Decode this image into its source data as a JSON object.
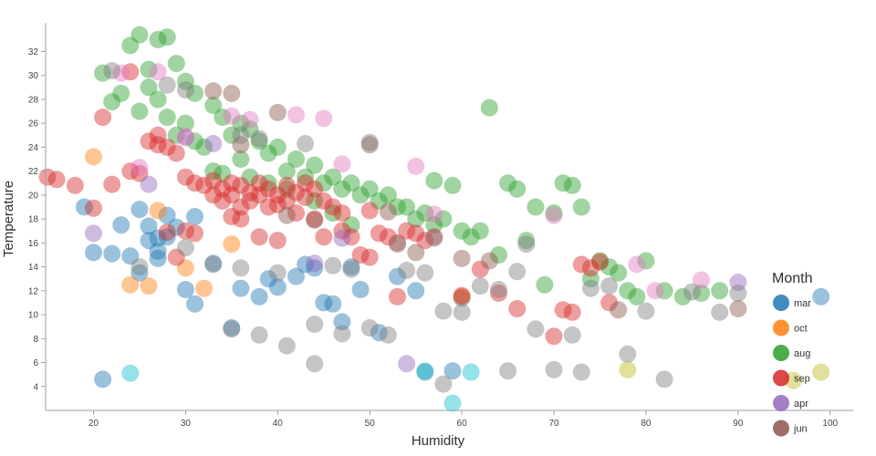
{
  "chart_data": {
    "type": "scatter",
    "title": "",
    "xlabel": "Humidity",
    "ylabel": "Temperature",
    "xlim": [
      14.8,
      102.5
    ],
    "ylim": [
      2,
      34.4
    ],
    "x_ticks": [
      20,
      30,
      40,
      50,
      60,
      70,
      80,
      90,
      100
    ],
    "y_ticks": [
      4,
      6,
      8,
      10,
      12,
      14,
      16,
      18,
      20,
      22,
      24,
      26,
      28,
      30,
      32
    ],
    "grid": false,
    "legend_title": "Month",
    "legend_position": "right",
    "point_opacity": 0.45,
    "point_radius": 9.5,
    "legend_items": [
      {
        "label": "mar",
        "color": "#1f77b4"
      },
      {
        "label": "oct",
        "color": "#ff7f0e"
      },
      {
        "label": "aug",
        "color": "#2ca02c"
      },
      {
        "label": "sep",
        "color": "#d62728"
      },
      {
        "label": "apr",
        "color": "#9467bd"
      },
      {
        "label": "jun",
        "color": "#8c564b"
      }
    ],
    "series": [
      {
        "name": "mar",
        "color": "#1f77b4",
        "points": [
          [
            19,
            19
          ],
          [
            20,
            15.2
          ],
          [
            21,
            4.6
          ],
          [
            22,
            15.1
          ],
          [
            23,
            17.5
          ],
          [
            24,
            14.9
          ],
          [
            25,
            18.8
          ],
          [
            25,
            13.5
          ],
          [
            26,
            17.4
          ],
          [
            26,
            16.2
          ],
          [
            27,
            16.4
          ],
          [
            27,
            15.3
          ],
          [
            27,
            14.7
          ],
          [
            28,
            18.3
          ],
          [
            28,
            16.5
          ],
          [
            29,
            17.3
          ],
          [
            30,
            12.1
          ],
          [
            31,
            18.2
          ],
          [
            31,
            10.9
          ],
          [
            33,
            14.3
          ],
          [
            35,
            8.9
          ],
          [
            36,
            12.2
          ],
          [
            38,
            11.5
          ],
          [
            39,
            13.0
          ],
          [
            40,
            12.3
          ],
          [
            42,
            13.2
          ],
          [
            43,
            14.2
          ],
          [
            44,
            13.9
          ],
          [
            45,
            11.0
          ],
          [
            46,
            10.9
          ],
          [
            47,
            9.4
          ],
          [
            48,
            14.0
          ],
          [
            49,
            12.1
          ],
          [
            51,
            8.5
          ],
          [
            53,
            13.2
          ],
          [
            55,
            12.0
          ],
          [
            56,
            5.2
          ],
          [
            59,
            5.3
          ],
          [
            60,
            11.4
          ],
          [
            99,
            11.5
          ]
        ]
      },
      {
        "name": "oct",
        "color": "#ff7f0e",
        "points": [
          [
            20,
            23.2
          ],
          [
            24,
            12.5
          ],
          [
            26,
            12.4
          ],
          [
            27,
            18.7
          ],
          [
            30,
            13.9
          ],
          [
            32,
            12.2
          ],
          [
            35,
            15.9
          ],
          [
            60,
            11.5
          ]
        ]
      },
      {
        "name": "aug",
        "color": "#2ca02c",
        "points": [
          [
            21,
            30.2
          ],
          [
            22,
            27.8
          ],
          [
            23,
            28.5
          ],
          [
            24,
            32.5
          ],
          [
            25,
            33.4
          ],
          [
            25,
            27
          ],
          [
            26,
            30.5
          ],
          [
            26,
            29
          ],
          [
            27,
            33
          ],
          [
            27,
            28
          ],
          [
            28,
            33.2
          ],
          [
            28,
            26.5
          ],
          [
            29,
            31
          ],
          [
            29,
            25
          ],
          [
            30,
            29.5
          ],
          [
            30,
            26
          ],
          [
            31,
            28.5
          ],
          [
            31,
            24.5
          ],
          [
            32,
            24
          ],
          [
            33,
            27.5
          ],
          [
            33,
            22
          ],
          [
            34,
            26.5
          ],
          [
            34,
            21.8
          ],
          [
            35,
            25
          ],
          [
            36,
            26
          ],
          [
            36,
            23
          ],
          [
            37,
            25.5
          ],
          [
            37,
            21.5
          ],
          [
            38,
            24.5
          ],
          [
            39,
            23.5
          ],
          [
            39,
            21
          ],
          [
            40,
            24
          ],
          [
            41,
            22
          ],
          [
            41,
            20.5
          ],
          [
            42,
            23
          ],
          [
            43,
            21.5
          ],
          [
            44,
            22.5
          ],
          [
            44,
            19.5
          ],
          [
            45,
            21
          ],
          [
            46,
            21.5
          ],
          [
            46,
            18.5
          ],
          [
            47,
            20.5
          ],
          [
            48,
            21
          ],
          [
            48,
            17.5
          ],
          [
            49,
            20
          ],
          [
            50,
            20.5
          ],
          [
            51,
            19.5
          ],
          [
            52,
            20
          ],
          [
            53,
            19
          ],
          [
            54,
            19
          ],
          [
            55,
            18
          ],
          [
            56,
            18.5
          ],
          [
            57,
            21.2
          ],
          [
            57,
            17.5
          ],
          [
            58,
            18
          ],
          [
            59,
            20.8
          ],
          [
            60,
            17
          ],
          [
            61,
            16.5
          ],
          [
            62,
            17
          ],
          [
            63,
            27.3
          ],
          [
            64,
            15
          ],
          [
            65,
            21
          ],
          [
            66,
            20.5
          ],
          [
            67,
            16.2
          ],
          [
            68,
            19
          ],
          [
            69,
            12.5
          ],
          [
            70,
            18.5
          ],
          [
            71,
            21
          ],
          [
            72,
            20.8
          ],
          [
            73,
            19
          ],
          [
            74,
            13
          ],
          [
            75,
            14.5
          ],
          [
            76,
            14
          ],
          [
            77,
            13.5
          ],
          [
            78,
            12
          ],
          [
            79,
            11.5
          ],
          [
            80,
            14.5
          ],
          [
            82,
            12
          ],
          [
            84,
            11.5
          ],
          [
            86,
            11.8
          ],
          [
            88,
            12
          ]
        ]
      },
      {
        "name": "sep",
        "color": "#d62728",
        "points": [
          [
            15,
            21.5
          ],
          [
            16,
            21.3
          ],
          [
            18,
            20.8
          ],
          [
            20,
            18.9
          ],
          [
            21,
            26.5
          ],
          [
            22,
            20.9
          ],
          [
            24,
            30.3
          ],
          [
            24,
            22
          ],
          [
            25,
            21.8
          ],
          [
            26,
            24.5
          ],
          [
            27,
            25
          ],
          [
            27,
            24.2
          ],
          [
            28,
            24
          ],
          [
            28,
            16.9
          ],
          [
            29,
            23.5
          ],
          [
            29,
            14.8
          ],
          [
            30,
            21.5
          ],
          [
            30,
            17
          ],
          [
            31,
            21
          ],
          [
            31,
            16.8
          ],
          [
            32,
            20.8
          ],
          [
            33,
            21.2
          ],
          [
            33,
            20
          ],
          [
            34,
            20.5
          ],
          [
            34,
            19.5
          ],
          [
            35,
            21
          ],
          [
            35,
            20
          ],
          [
            35,
            18.2
          ],
          [
            36,
            20.8
          ],
          [
            36,
            19
          ],
          [
            36,
            18
          ],
          [
            37,
            20.2
          ],
          [
            37,
            19.5
          ],
          [
            38,
            21
          ],
          [
            38,
            20
          ],
          [
            38,
            16.5
          ],
          [
            39,
            20.5
          ],
          [
            39,
            19
          ],
          [
            40,
            20
          ],
          [
            40,
            19.2
          ],
          [
            40,
            16.2
          ],
          [
            41,
            20.8
          ],
          [
            41,
            19.5
          ],
          [
            42,
            20.2
          ],
          [
            42,
            18.5
          ],
          [
            43,
            21
          ],
          [
            43,
            19.8
          ],
          [
            44,
            20.5
          ],
          [
            44,
            18
          ],
          [
            45,
            19.5
          ],
          [
            45,
            16.5
          ],
          [
            46,
            19
          ],
          [
            47,
            18.5
          ],
          [
            47,
            17
          ],
          [
            48,
            16.5
          ],
          [
            49,
            15
          ],
          [
            50,
            18.7
          ],
          [
            50,
            14.8
          ],
          [
            51,
            16.8
          ],
          [
            52,
            16.5
          ],
          [
            53,
            16
          ],
          [
            53,
            11.5
          ],
          [
            54,
            17
          ],
          [
            55,
            16.8
          ],
          [
            56,
            16.2
          ],
          [
            57,
            16.5
          ],
          [
            60,
            11.6
          ],
          [
            62,
            13.8
          ],
          [
            64,
            11.8
          ],
          [
            66,
            10.5
          ],
          [
            70,
            8.2
          ],
          [
            71,
            10.4
          ],
          [
            72,
            10.2
          ],
          [
            73,
            14.2
          ],
          [
            74,
            13.9
          ],
          [
            75,
            14.4
          ],
          [
            76,
            11
          ]
        ]
      },
      {
        "name": "apr",
        "color": "#9467bd",
        "points": [
          [
            20,
            16.8
          ],
          [
            26,
            20.9
          ],
          [
            30,
            24.8
          ],
          [
            33,
            24.3
          ],
          [
            44,
            14.3
          ],
          [
            47,
            16.4
          ],
          [
            54,
            5.9
          ],
          [
            90,
            12.7
          ]
        ]
      },
      {
        "name": "jun",
        "color": "#8c564b",
        "points": [
          [
            33,
            28.7
          ],
          [
            35,
            28.5
          ],
          [
            36,
            24.2
          ],
          [
            40,
            26.9
          ],
          [
            41,
            18.3
          ],
          [
            44,
            17.9
          ],
          [
            50,
            24.2
          ],
          [
            52,
            18.6
          ],
          [
            55,
            15.2
          ],
          [
            60,
            14.7
          ],
          [
            63,
            14.5
          ],
          [
            77,
            10.4
          ],
          [
            90,
            10.5
          ]
        ]
      },
      {
        "name": "",
        "color": "#e377c2",
        "points": [
          [
            23,
            30.2
          ],
          [
            25,
            22.3
          ],
          [
            27,
            30.3
          ],
          [
            30,
            24.9
          ],
          [
            35,
            26.6
          ],
          [
            37,
            26.3
          ],
          [
            42,
            26.7
          ],
          [
            45,
            26.4
          ],
          [
            47,
            22.6
          ],
          [
            55,
            22.4
          ],
          [
            57,
            18.4
          ],
          [
            70,
            18.3
          ],
          [
            79,
            14.2
          ],
          [
            81,
            12.0
          ],
          [
            86,
            12.9
          ]
        ]
      },
      {
        "name": "",
        "color": "#7f7f7f",
        "points": [
          [
            22,
            30.4
          ],
          [
            25,
            14.0
          ],
          [
            28,
            29.2
          ],
          [
            30,
            28.8
          ],
          [
            30,
            15.6
          ],
          [
            33,
            14.2
          ],
          [
            35,
            8.8
          ],
          [
            36,
            25
          ],
          [
            36,
            13.9
          ],
          [
            38,
            24.7
          ],
          [
            38,
            8.3
          ],
          [
            40,
            13.5
          ],
          [
            41,
            7.4
          ],
          [
            43,
            24.3
          ],
          [
            44,
            9.2
          ],
          [
            44,
            5.9
          ],
          [
            46,
            14.1
          ],
          [
            47,
            8.4
          ],
          [
            48,
            13.8
          ],
          [
            50,
            24.4
          ],
          [
            50,
            8.9
          ],
          [
            52,
            8.3
          ],
          [
            53,
            15.9
          ],
          [
            54,
            13.7
          ],
          [
            56,
            13.5
          ],
          [
            57,
            16.4
          ],
          [
            58,
            10.3
          ],
          [
            58,
            4.2
          ],
          [
            60,
            10.2
          ],
          [
            62,
            12.4
          ],
          [
            64,
            12.1
          ],
          [
            65,
            5.3
          ],
          [
            66,
            13.6
          ],
          [
            67,
            15.9
          ],
          [
            68,
            8.8
          ],
          [
            70,
            5.4
          ],
          [
            72,
            8.3
          ],
          [
            73,
            5.2
          ],
          [
            74,
            12.2
          ],
          [
            76,
            12.4
          ],
          [
            78,
            6.7
          ],
          [
            80,
            10.3
          ],
          [
            82,
            4.6
          ],
          [
            85,
            11.9
          ],
          [
            88,
            10.2
          ],
          [
            90,
            11.8
          ]
        ]
      },
      {
        "name": "",
        "color": "#17becf",
        "points": [
          [
            24,
            5.1
          ],
          [
            56,
            5.3
          ],
          [
            59,
            2.6
          ],
          [
            61,
            5.2
          ]
        ]
      },
      {
        "name": "",
        "color": "#bcbd22",
        "points": [
          [
            78,
            5.4
          ],
          [
            96,
            4.5
          ],
          [
            99,
            5.2
          ]
        ]
      }
    ]
  }
}
